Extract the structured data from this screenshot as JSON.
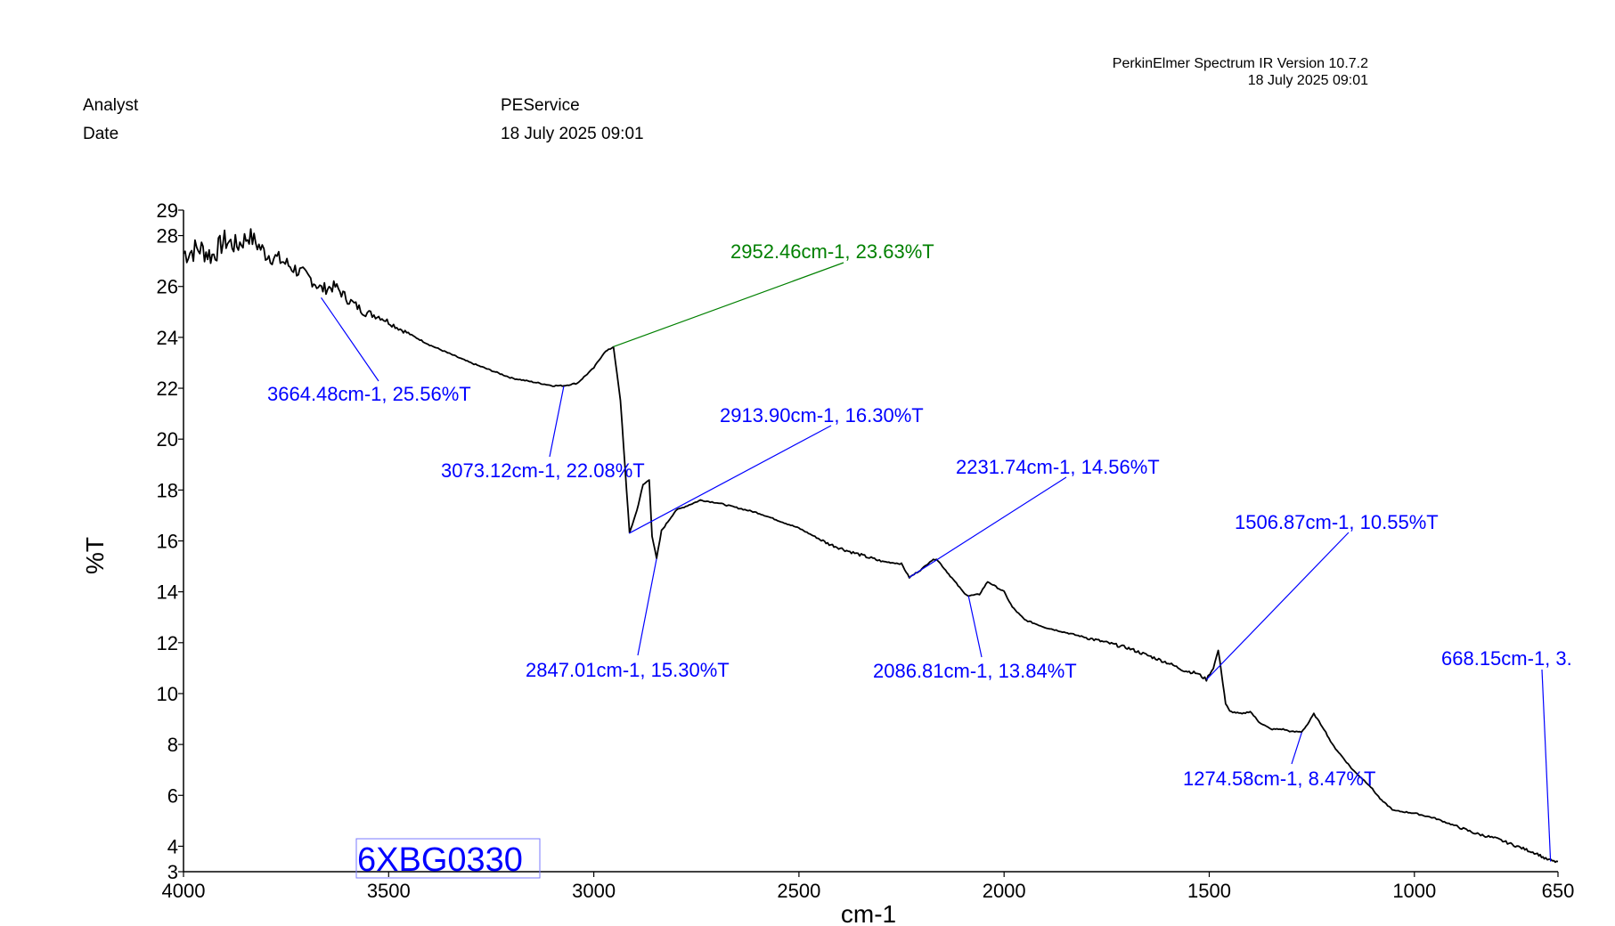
{
  "software": "PerkinElmer Spectrum IR Version 10.7.2",
  "software_date": "18 July 2025 09:01",
  "analyst_label": "Analyst",
  "analyst_value": "PEService",
  "date_label": "Date",
  "date_value": "18 July 2025 09:01",
  "sample_label": "6XBG0330",
  "colors": {
    "trace": "#000000",
    "annotation": "#0000ff",
    "highlight": "#008000"
  },
  "chart_data": {
    "type": "line",
    "xlabel": "cm-1",
    "ylabel": "%T",
    "xlim": [
      4000,
      650
    ],
    "ylim": [
      3,
      29
    ],
    "x_ticks": [
      "4000",
      "3500",
      "3000",
      "2500",
      "2000",
      "1500",
      "1000",
      "650"
    ],
    "y_ticks": [
      "3",
      "4",
      "6",
      "8",
      "10",
      "12",
      "14",
      "16",
      "18",
      "20",
      "22",
      "24",
      "26",
      "28",
      "29"
    ],
    "series": [
      {
        "name": "6XBG0330",
        "x": [
          4000,
          3960,
          3930,
          3900,
          3870,
          3840,
          3800,
          3760,
          3720,
          3690,
          3664,
          3630,
          3600,
          3560,
          3520,
          3480,
          3400,
          3300,
          3200,
          3100,
          3073,
          3040,
          3000,
          2975,
          2952,
          2935,
          2920,
          2913,
          2895,
          2880,
          2865,
          2858,
          2847,
          2835,
          2800,
          2740,
          2700,
          2600,
          2500,
          2430,
          2380,
          2340,
          2300,
          2250,
          2231,
          2200,
          2180,
          2165,
          2150,
          2120,
          2100,
          2087,
          2060,
          2040,
          2020,
          2000,
          1980,
          1950,
          1900,
          1850,
          1800,
          1750,
          1700,
          1650,
          1600,
          1560,
          1530,
          1507,
          1490,
          1478,
          1470,
          1460,
          1450,
          1420,
          1400,
          1380,
          1350,
          1320,
          1300,
          1275,
          1260,
          1245,
          1220,
          1200,
          1150,
          1110,
          1080,
          1050,
          1000,
          950,
          900,
          850,
          800,
          750,
          700,
          690,
          680,
          668,
          660,
          650
        ],
        "y": [
          27.3,
          27.5,
          27.2,
          27.8,
          27.6,
          28.0,
          27.3,
          27.0,
          26.6,
          26.3,
          25.9,
          26.0,
          25.5,
          25.0,
          24.8,
          24.4,
          23.7,
          23.0,
          22.4,
          22.1,
          22.1,
          22.2,
          22.8,
          23.4,
          23.63,
          21.5,
          18.0,
          16.3,
          17.2,
          18.2,
          18.4,
          16.2,
          15.3,
          16.4,
          17.2,
          17.6,
          17.5,
          17.1,
          16.5,
          15.9,
          15.6,
          15.4,
          15.2,
          15.1,
          14.56,
          14.9,
          15.2,
          15.3,
          15.0,
          14.4,
          14.0,
          13.84,
          13.9,
          14.4,
          14.2,
          14.0,
          13.4,
          12.9,
          12.6,
          12.4,
          12.2,
          12.0,
          11.8,
          11.5,
          11.2,
          10.9,
          10.8,
          10.55,
          11.0,
          11.7,
          10.8,
          9.6,
          9.3,
          9.2,
          9.3,
          8.9,
          8.6,
          8.6,
          8.5,
          8.5,
          8.8,
          9.2,
          8.6,
          8.0,
          7.0,
          6.4,
          5.8,
          5.4,
          5.3,
          5.1,
          4.8,
          4.5,
          4.3,
          4.0,
          3.7,
          3.6,
          3.5,
          3.45,
          3.4,
          3.4
        ]
      }
    ],
    "annotations": [
      {
        "text": "3664.48cm-1, 25.56%T",
        "x": 3664.48,
        "y": 25.56,
        "color": "#0000ff"
      },
      {
        "text": "3073.12cm-1, 22.08%T",
        "x": 3073.12,
        "y": 22.08,
        "color": "#0000ff"
      },
      {
        "text": "2952.46cm-1, 23.63%T",
        "x": 2952.46,
        "y": 23.63,
        "color": "#008000"
      },
      {
        "text": "2913.90cm-1, 16.30%T",
        "x": 2913.9,
        "y": 16.3,
        "color": "#0000ff"
      },
      {
        "text": "2847.01cm-1, 15.30%T",
        "x": 2847.01,
        "y": 15.3,
        "color": "#0000ff"
      },
      {
        "text": "2231.74cm-1, 14.56%T",
        "x": 2231.74,
        "y": 14.56,
        "color": "#0000ff"
      },
      {
        "text": "2086.81cm-1, 13.84%T",
        "x": 2086.81,
        "y": 13.84,
        "color": "#0000ff"
      },
      {
        "text": "1506.87cm-1, 10.55%T",
        "x": 1506.87,
        "y": 10.55,
        "color": "#0000ff"
      },
      {
        "text": "1274.58cm-1, 8.47%T",
        "x": 1274.58,
        "y": 8.47,
        "color": "#0000ff"
      },
      {
        "text": "668.15cm-1, 3.",
        "x": 668.15,
        "y": 3.4,
        "color": "#0000ff"
      }
    ]
  }
}
